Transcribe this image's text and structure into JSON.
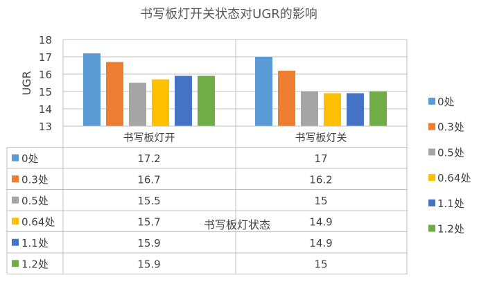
{
  "chart_data": {
    "type": "bar",
    "title": "书写板灯开关状态对UGR的影响",
    "xlabel": "书写板灯状态",
    "ylabel": "UGR",
    "ylim": [
      13,
      18
    ],
    "yticks": [
      13,
      14,
      15,
      16,
      17,
      18
    ],
    "grid": true,
    "legend_position": "right",
    "data_table": true,
    "categories": [
      "书写板灯开",
      "书写板灯关"
    ],
    "series": [
      {
        "name": "0处",
        "values": [
          17.2,
          17
        ],
        "color": "#5b9bd5"
      },
      {
        "name": "0.3处",
        "values": [
          16.7,
          16.2
        ],
        "color": "#ed7d31"
      },
      {
        "name": "0.5处",
        "values": [
          15.5,
          15
        ],
        "color": "#a5a5a5"
      },
      {
        "name": "0.64处",
        "values": [
          15.7,
          14.9
        ],
        "color": "#ffc000"
      },
      {
        "name": "1.1处",
        "values": [
          15.9,
          14.9
        ],
        "color": "#4472c4"
      },
      {
        "name": "1.2处",
        "values": [
          15.9,
          15
        ],
        "color": "#70ad47"
      }
    ]
  }
}
